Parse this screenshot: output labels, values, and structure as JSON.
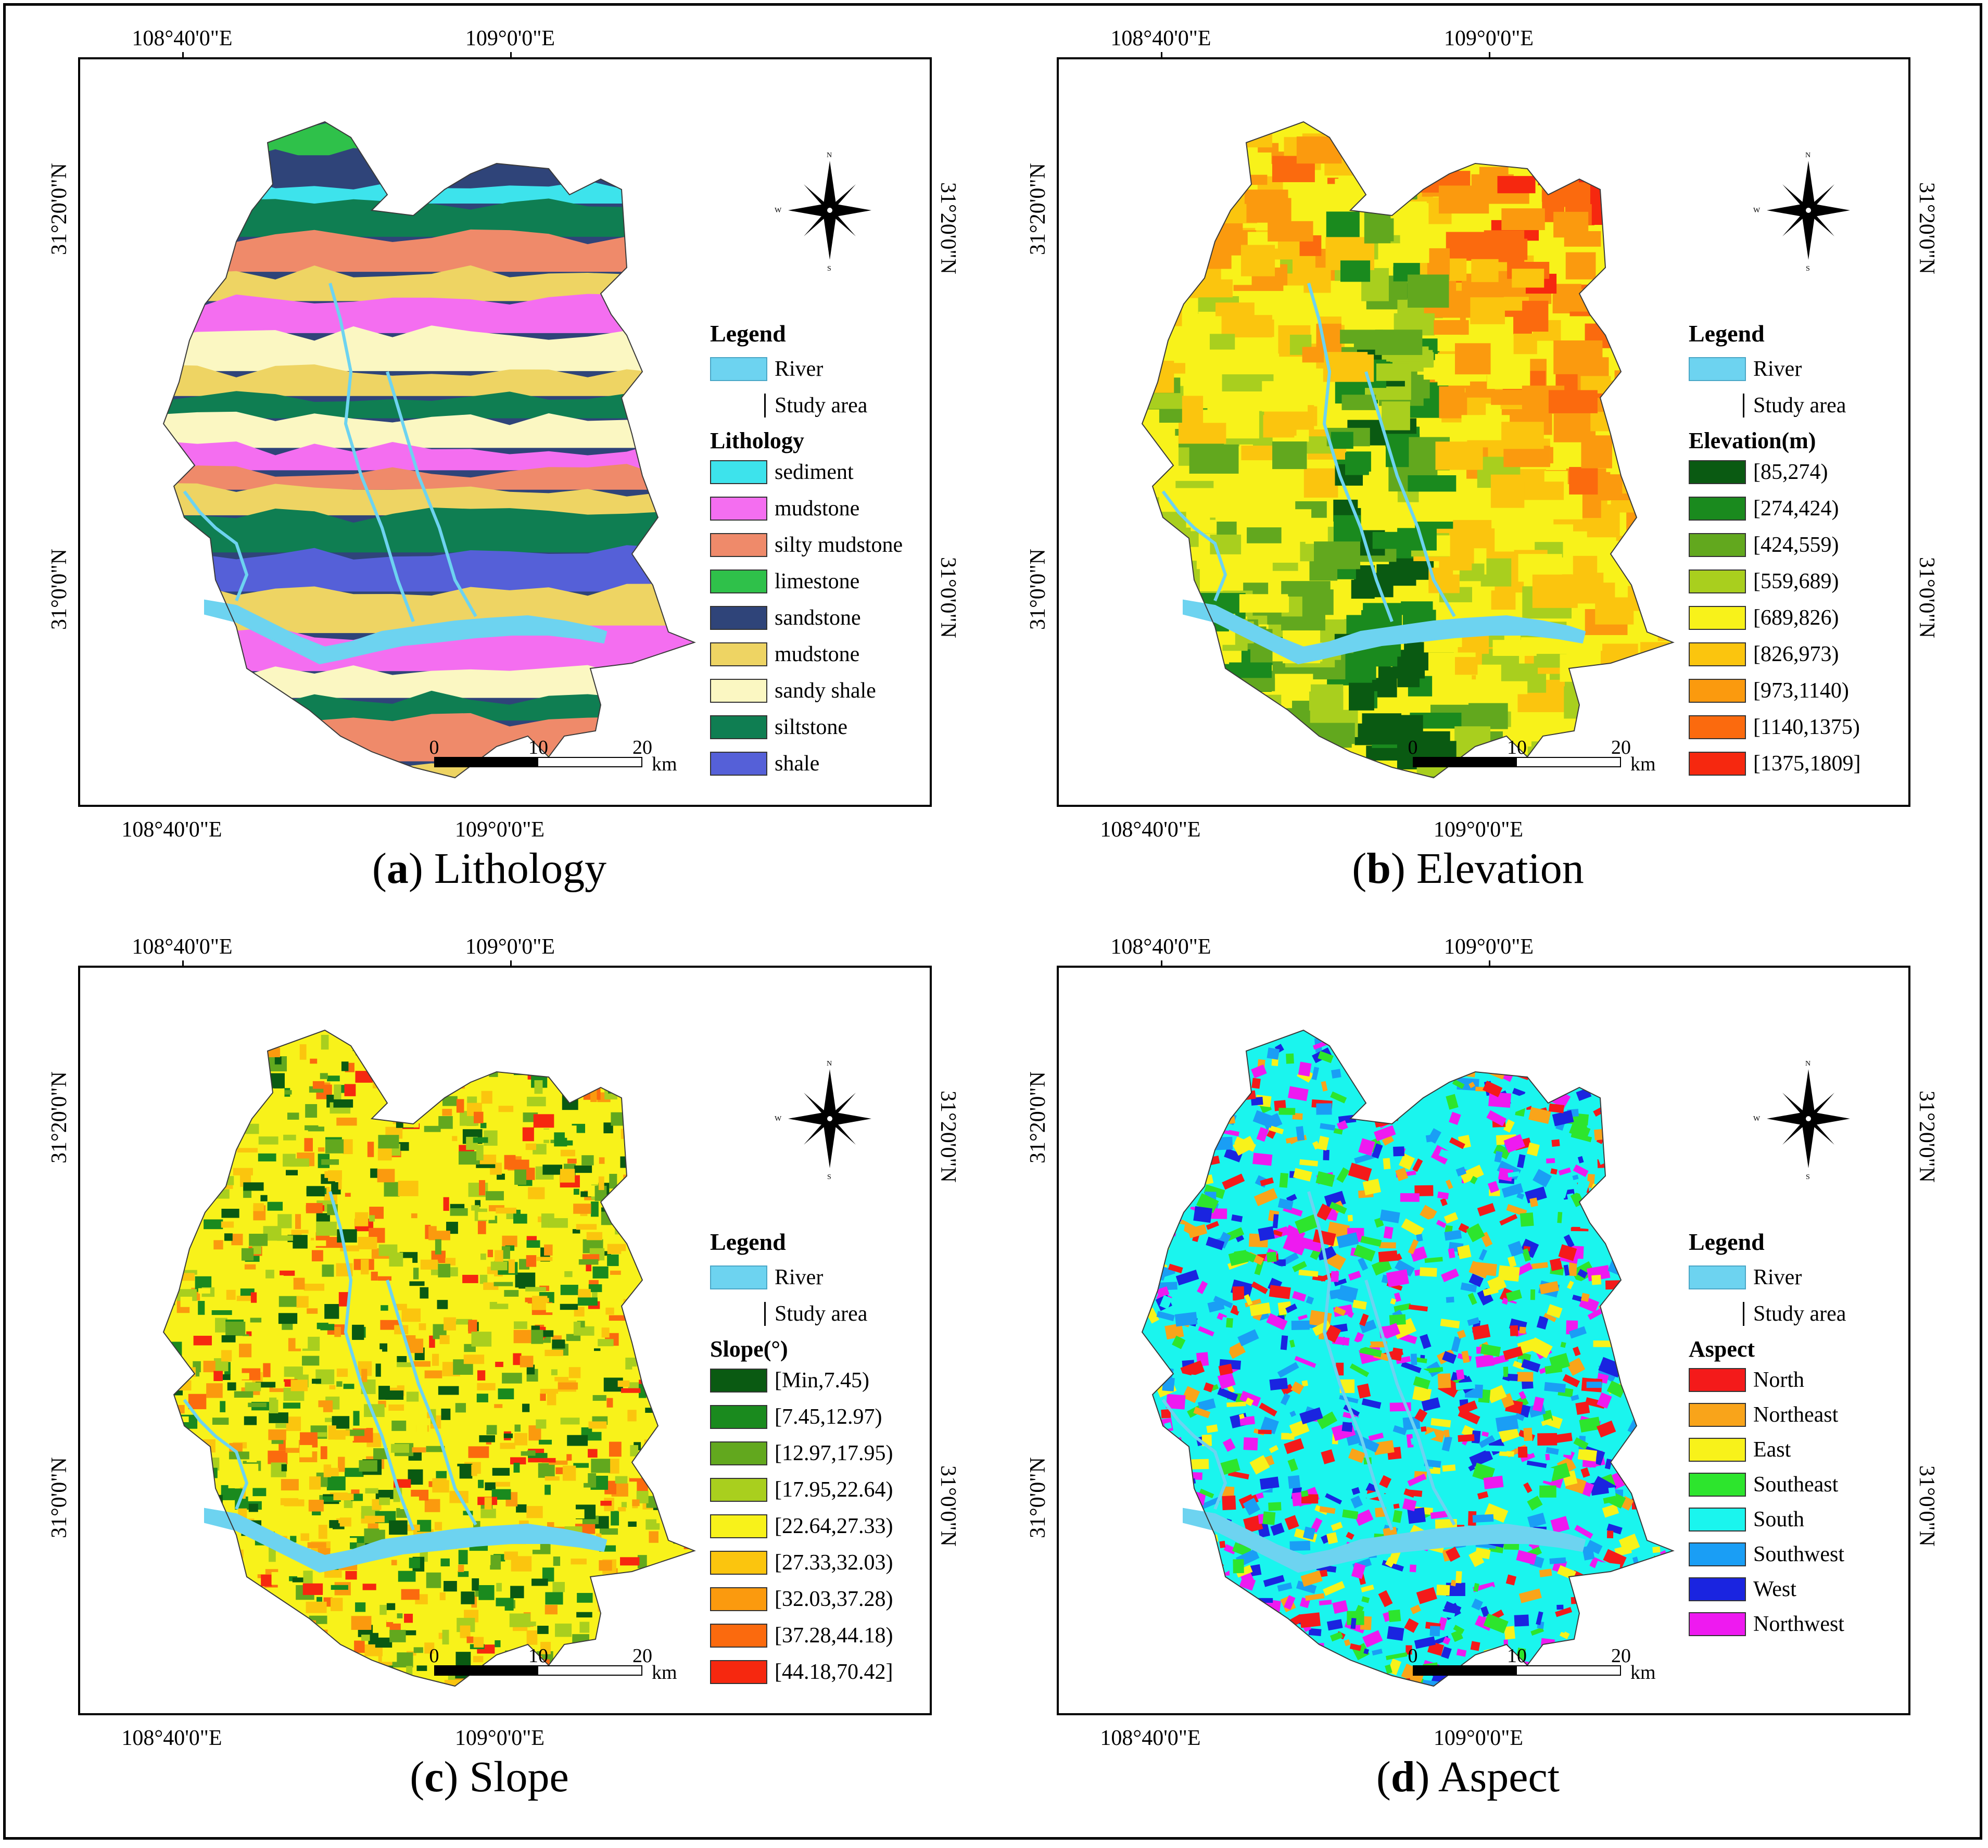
{
  "coords": {
    "lon_west": "108°40'0\"E",
    "lon_east": "109°0'0\"E",
    "lat_north": "31°20'0\"N",
    "lat_south": "31°0'0\"N"
  },
  "scalebar": {
    "ticks": [
      "0",
      "10",
      "20"
    ],
    "unit": "km"
  },
  "compass": {
    "n": "N",
    "s": "S",
    "w": "W"
  },
  "legend_common": {
    "title": "Legend",
    "river": "River",
    "study_area": "Study area"
  },
  "colors": {
    "river": "#6dd3f0"
  },
  "panels": {
    "a": {
      "letter": "a",
      "name": "Lithology",
      "legend_heading": "Lithology",
      "classes": [
        {
          "label": "sediment",
          "color": "#3de3ec"
        },
        {
          "label": "mudstone",
          "color": "#f46ef0"
        },
        {
          "label": "silty mudstone",
          "color": "#ef8a6a"
        },
        {
          "label": "limestone",
          "color": "#2fc14a"
        },
        {
          "label": "sandstone",
          "color": "#2f4479"
        },
        {
          "label": "mudstone",
          "color": "#eed463"
        },
        {
          "label": "sandy shale",
          "color": "#fbf7c2"
        },
        {
          "label": "siltstone",
          "color": "#0f7e52"
        },
        {
          "label": "shale",
          "color": "#5560d8"
        }
      ]
    },
    "b": {
      "letter": "b",
      "name": "Elevation",
      "legend_heading": "Elevation(m)",
      "classes": [
        {
          "label": "[85,274)",
          "color": "#0a5a12"
        },
        {
          "label": "[274,424)",
          "color": "#1a8a1e"
        },
        {
          "label": "[424,559)",
          "color": "#62a81e"
        },
        {
          "label": "[559,689)",
          "color": "#a9cf1e"
        },
        {
          "label": "[689,826)",
          "color": "#f8f21a"
        },
        {
          "label": "[826,973)",
          "color": "#fbc50e"
        },
        {
          "label": "[973,1140)",
          "color": "#fb9a0e"
        },
        {
          "label": "[1140,1375)",
          "color": "#fb6a0e"
        },
        {
          "label": "[1375,1809]",
          "color": "#f6280f"
        }
      ]
    },
    "c": {
      "letter": "c",
      "name": "Slope",
      "legend_heading": "Slope(°)",
      "classes": [
        {
          "label": "[Min,7.45)",
          "color": "#0a5a12"
        },
        {
          "label": "[7.45,12.97)",
          "color": "#1a8a1e"
        },
        {
          "label": "[12.97,17.95)",
          "color": "#62a81e"
        },
        {
          "label": "[17.95,22.64)",
          "color": "#a9cf1e"
        },
        {
          "label": "[22.64,27.33)",
          "color": "#f8f21a"
        },
        {
          "label": "[27.33,32.03)",
          "color": "#fbc50e"
        },
        {
          "label": "[32.03,37.28)",
          "color": "#fb9a0e"
        },
        {
          "label": "[37.28,44.18)",
          "color": "#fb6a0e"
        },
        {
          "label": "[44.18,70.42]",
          "color": "#f6280f"
        }
      ]
    },
    "d": {
      "letter": "d",
      "name": "Aspect",
      "legend_heading": "Aspect",
      "classes": [
        {
          "label": "North",
          "color": "#f41a1a"
        },
        {
          "label": "Northeast",
          "color": "#f9a41a"
        },
        {
          "label": "East",
          "color": "#f8f21a"
        },
        {
          "label": "Southeast",
          "color": "#2de52d"
        },
        {
          "label": "South",
          "color": "#1af5ee"
        },
        {
          "label": "Southwest",
          "color": "#1a9ef5"
        },
        {
          "label": "West",
          "color": "#1a24e0"
        },
        {
          "label": "Northwest",
          "color": "#ee1af0"
        }
      ]
    }
  }
}
